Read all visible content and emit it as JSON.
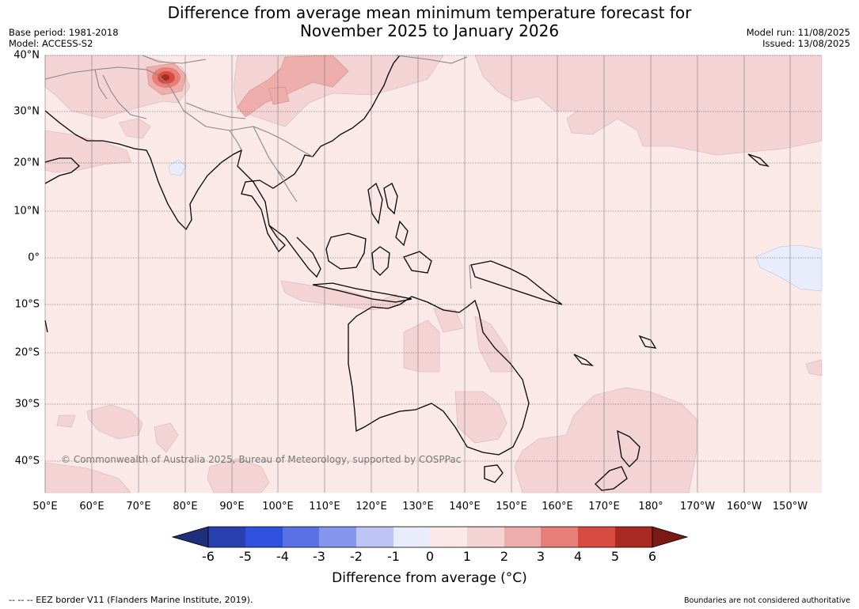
{
  "title_line1": "Difference from average mean minimum temperature forecast for",
  "title_line2": "November 2025 to January 2026",
  "base_period": "Base period: 1981-2018",
  "model": "Model: ACCESS-S2",
  "model_run": "Model run: 11/08/2025",
  "issued": "Issued: 13/08/2025",
  "copyright": "© Commonwealth of Australia 2025, Bureau of Meteorology, supported by COSPPac",
  "lat_labels": [
    "40°N",
    "30°N",
    "20°N",
    "10°N",
    "0°",
    "10°S",
    "20°S",
    "30°S",
    "40°S"
  ],
  "lon_labels": [
    "50°E",
    "60°E",
    "70°E",
    "80°E",
    "90°E",
    "100°E",
    "110°E",
    "120°E",
    "130°E",
    "140°E",
    "150°E",
    "160°E",
    "170°E",
    "180°",
    "170°W",
    "160°W",
    "150°W"
  ],
  "colorbar": {
    "title": "Difference from average (°C)",
    "ticks": [
      "-6",
      "-5",
      "-4",
      "-3",
      "-2",
      "-1",
      "0",
      "1",
      "2",
      "3",
      "4",
      "5",
      "6"
    ],
    "colors": [
      "#1f2f7a",
      "#2a3fb0",
      "#3050e0",
      "#5a72e4",
      "#8596ec",
      "#bcc5f5",
      "#e8ecfb",
      "#fbe9e8",
      "#f3d3d3",
      "#edaeab",
      "#e57f78",
      "#d94a40",
      "#a82a22",
      "#7a1a15"
    ]
  },
  "footer_left": "--  --  -- EEZ border V11 (Flanders Marine Institute, 2019).",
  "footer_right": "Boundaries are not considered authoritative"
}
